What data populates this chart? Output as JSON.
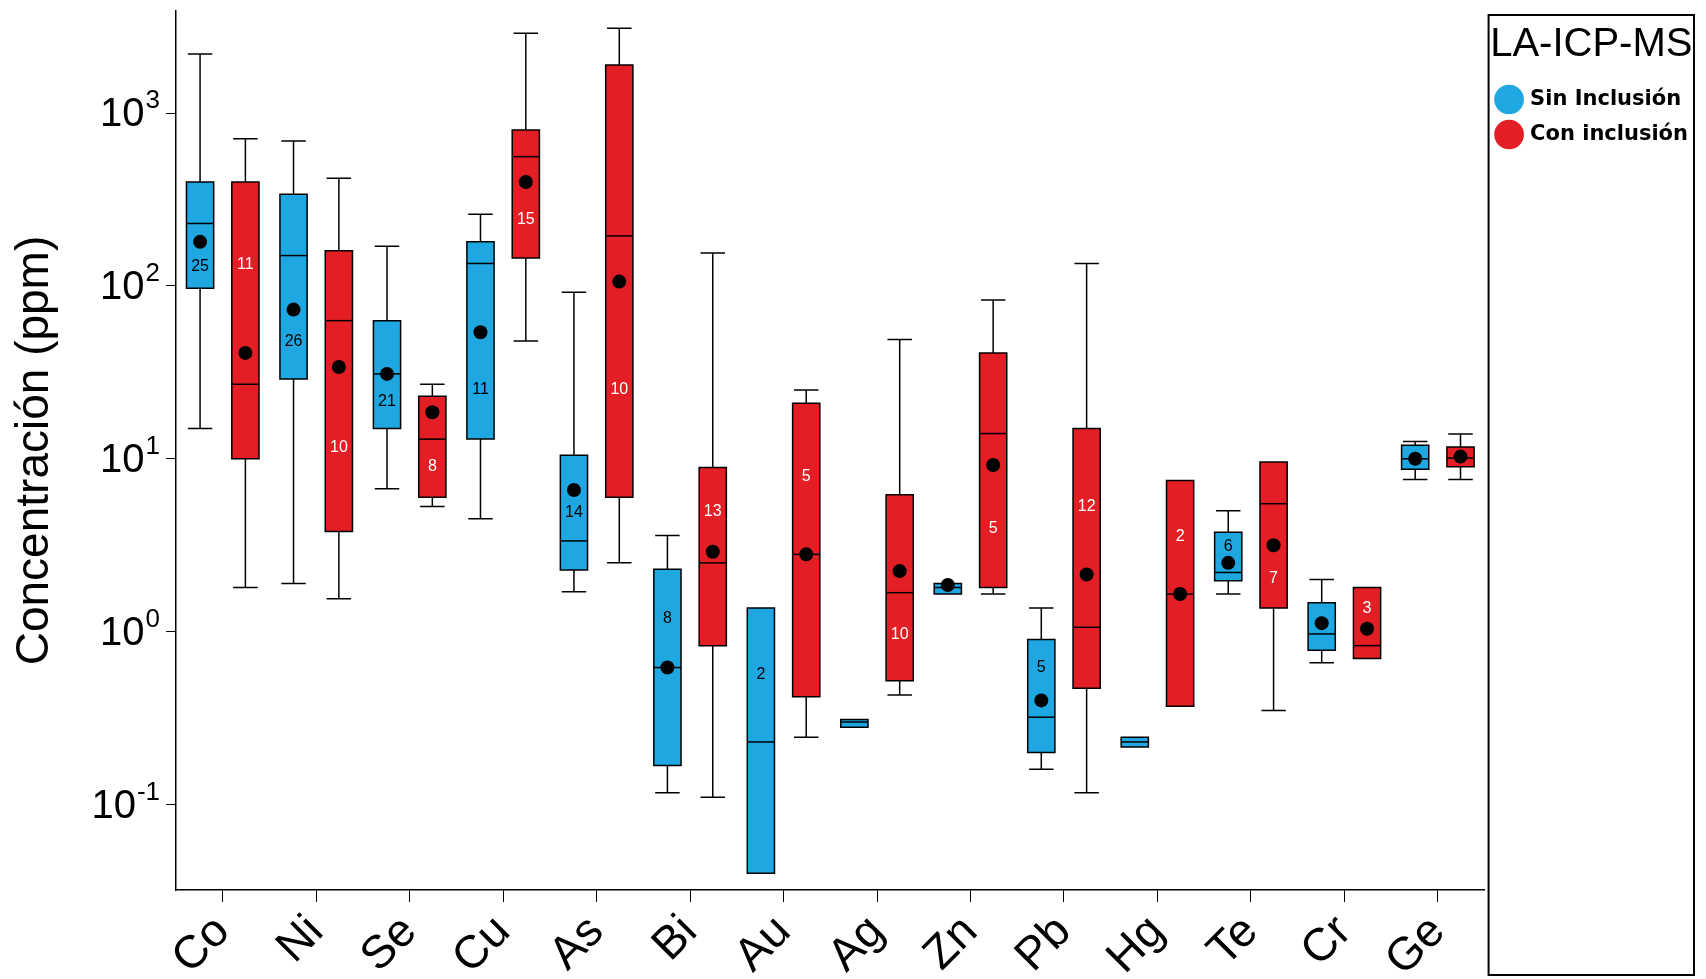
{
  "chart_data": {
    "type": "box",
    "ylabel": "Concentración (ppm)",
    "legend_title": "LA-ICP-MS",
    "legend": "top right",
    "grid": false,
    "log": "y",
    "categories": [
      "Co",
      "Ni",
      "Se",
      "Cu",
      "As",
      "Bi",
      "Au",
      "Ag",
      "Zn",
      "Pb",
      "Hg",
      "Te",
      "Cr",
      "Ge"
    ],
    "ylim": [
      0.032,
      3900
    ],
    "yticks": [
      {
        "value": 0.1,
        "label": "10$^{-1}$"
      },
      {
        "value": 1,
        "label": "10$^{0}$"
      },
      {
        "value": 10,
        "label": "10$^{1}$"
      },
      {
        "value": 100,
        "label": "10$^{2}$"
      },
      {
        "value": 1000,
        "label": "10$^{3}$"
      }
    ],
    "series": [
      {
        "name": "Sin Inclusión",
        "color": "#1ea7e1",
        "value_labels": [
          "25",
          "26",
          "21",
          "11",
          "14",
          "8",
          "2",
          null,
          null,
          "5",
          null,
          "6",
          null,
          null
        ],
        "boxes": [
          {
            "low": 15,
            "q1": 97,
            "median": 230,
            "q3": 400,
            "high": 2200,
            "mean": 180
          },
          {
            "low": 1.9,
            "q1": 29,
            "median": 150,
            "q3": 340,
            "high": 690,
            "mean": 73
          },
          {
            "low": 6.7,
            "q1": 15,
            "median": 31,
            "q3": 63,
            "high": 170,
            "mean": 31
          },
          {
            "low": 4.5,
            "q1": 13,
            "median": 135,
            "q3": 180,
            "high": 260,
            "mean": 54
          },
          {
            "low": 1.7,
            "q1": 2.27,
            "median": 3.35,
            "q3": 10.5,
            "high": 92,
            "mean": 6.6
          },
          {
            "low": 0.117,
            "q1": 0.168,
            "median": 0.62,
            "q3": 2.3,
            "high": 3.6,
            "mean": 0.62
          },
          {
            "low": 0.04,
            "q1": 0.04,
            "median": 0.23,
            "q3": 1.37,
            "high": 1.37
          },
          {
            "low": 0.28,
            "q1": 0.28,
            "median": 0.3,
            "q3": 0.31,
            "high": 0.31
          },
          {
            "low": 1.65,
            "q1": 1.65,
            "median": 1.8,
            "q3": 1.9,
            "high": 1.9,
            "mean": 1.86
          },
          {
            "low": 0.16,
            "q1": 0.2,
            "median": 0.32,
            "q3": 0.9,
            "high": 1.37,
            "mean": 0.4
          },
          {
            "low": 0.215,
            "q1": 0.215,
            "median": 0.23,
            "q3": 0.245,
            "high": 0.245
          },
          {
            "low": 1.65,
            "q1": 1.97,
            "median": 2.2,
            "q3": 3.76,
            "high": 5,
            "mean": 2.5
          },
          {
            "low": 0.66,
            "q1": 0.78,
            "median": 0.97,
            "q3": 1.47,
            "high": 2,
            "mean": 1.12
          },
          {
            "low": 7.6,
            "q1": 8.7,
            "median": 10,
            "q3": 12,
            "high": 12.6,
            "mean": 10
          }
        ]
      },
      {
        "name": "Con inclusión",
        "color": "#e31e24",
        "value_labels": [
          "11",
          "10",
          "8",
          "15",
          "10",
          "13",
          "5",
          "10",
          "5",
          "12",
          "2",
          "7",
          "3",
          null
        ],
        "boxes": [
          {
            "low": 1.8,
            "q1": 10,
            "median": 27,
            "q3": 400,
            "high": 710,
            "mean": 41
          },
          {
            "low": 1.55,
            "q1": 3.8,
            "median": 63,
            "q3": 160,
            "high": 420,
            "mean": 34
          },
          {
            "low": 5.3,
            "q1": 6,
            "median": 13,
            "q3": 23,
            "high": 27,
            "mean": 18.6
          },
          {
            "low": 48,
            "q1": 145,
            "median": 560,
            "q3": 800,
            "high": 2900,
            "mean": 400
          },
          {
            "low": 2.5,
            "q1": 6,
            "median": 195,
            "q3": 1900,
            "high": 3100,
            "mean": 106
          },
          {
            "low": 0.11,
            "q1": 0.83,
            "median": 2.5,
            "q3": 8.9,
            "high": 155,
            "mean": 2.9
          },
          {
            "low": 0.245,
            "q1": 0.42,
            "median": 2.8,
            "q3": 21,
            "high": 25,
            "mean": 2.8
          },
          {
            "low": 0.43,
            "q1": 0.52,
            "median": 1.68,
            "q3": 6.2,
            "high": 49,
            "mean": 2.24
          },
          {
            "low": 1.65,
            "q1": 1.8,
            "median": 14,
            "q3": 41,
            "high": 83,
            "mean": 9.2
          },
          {
            "low": 0.117,
            "q1": 0.47,
            "median": 1.06,
            "q3": 15,
            "high": 135,
            "mean": 2.14
          },
          {
            "low": 0.37,
            "q1": 0.37,
            "median": 1.65,
            "q3": 7.5,
            "high": 7.5,
            "mean": 1.65
          },
          {
            "low": 0.35,
            "q1": 1.37,
            "median": 5.5,
            "q3": 9.6,
            "high": 9.6,
            "mean": 3.16
          },
          {
            "low": 0.7,
            "q1": 0.7,
            "median": 0.83,
            "q3": 1.8,
            "high": 1.8,
            "mean": 1.04
          },
          {
            "low": 7.6,
            "q1": 9,
            "median": 10.1,
            "q3": 11.7,
            "high": 13.9,
            "mean": 10.3
          }
        ]
      }
    ]
  }
}
